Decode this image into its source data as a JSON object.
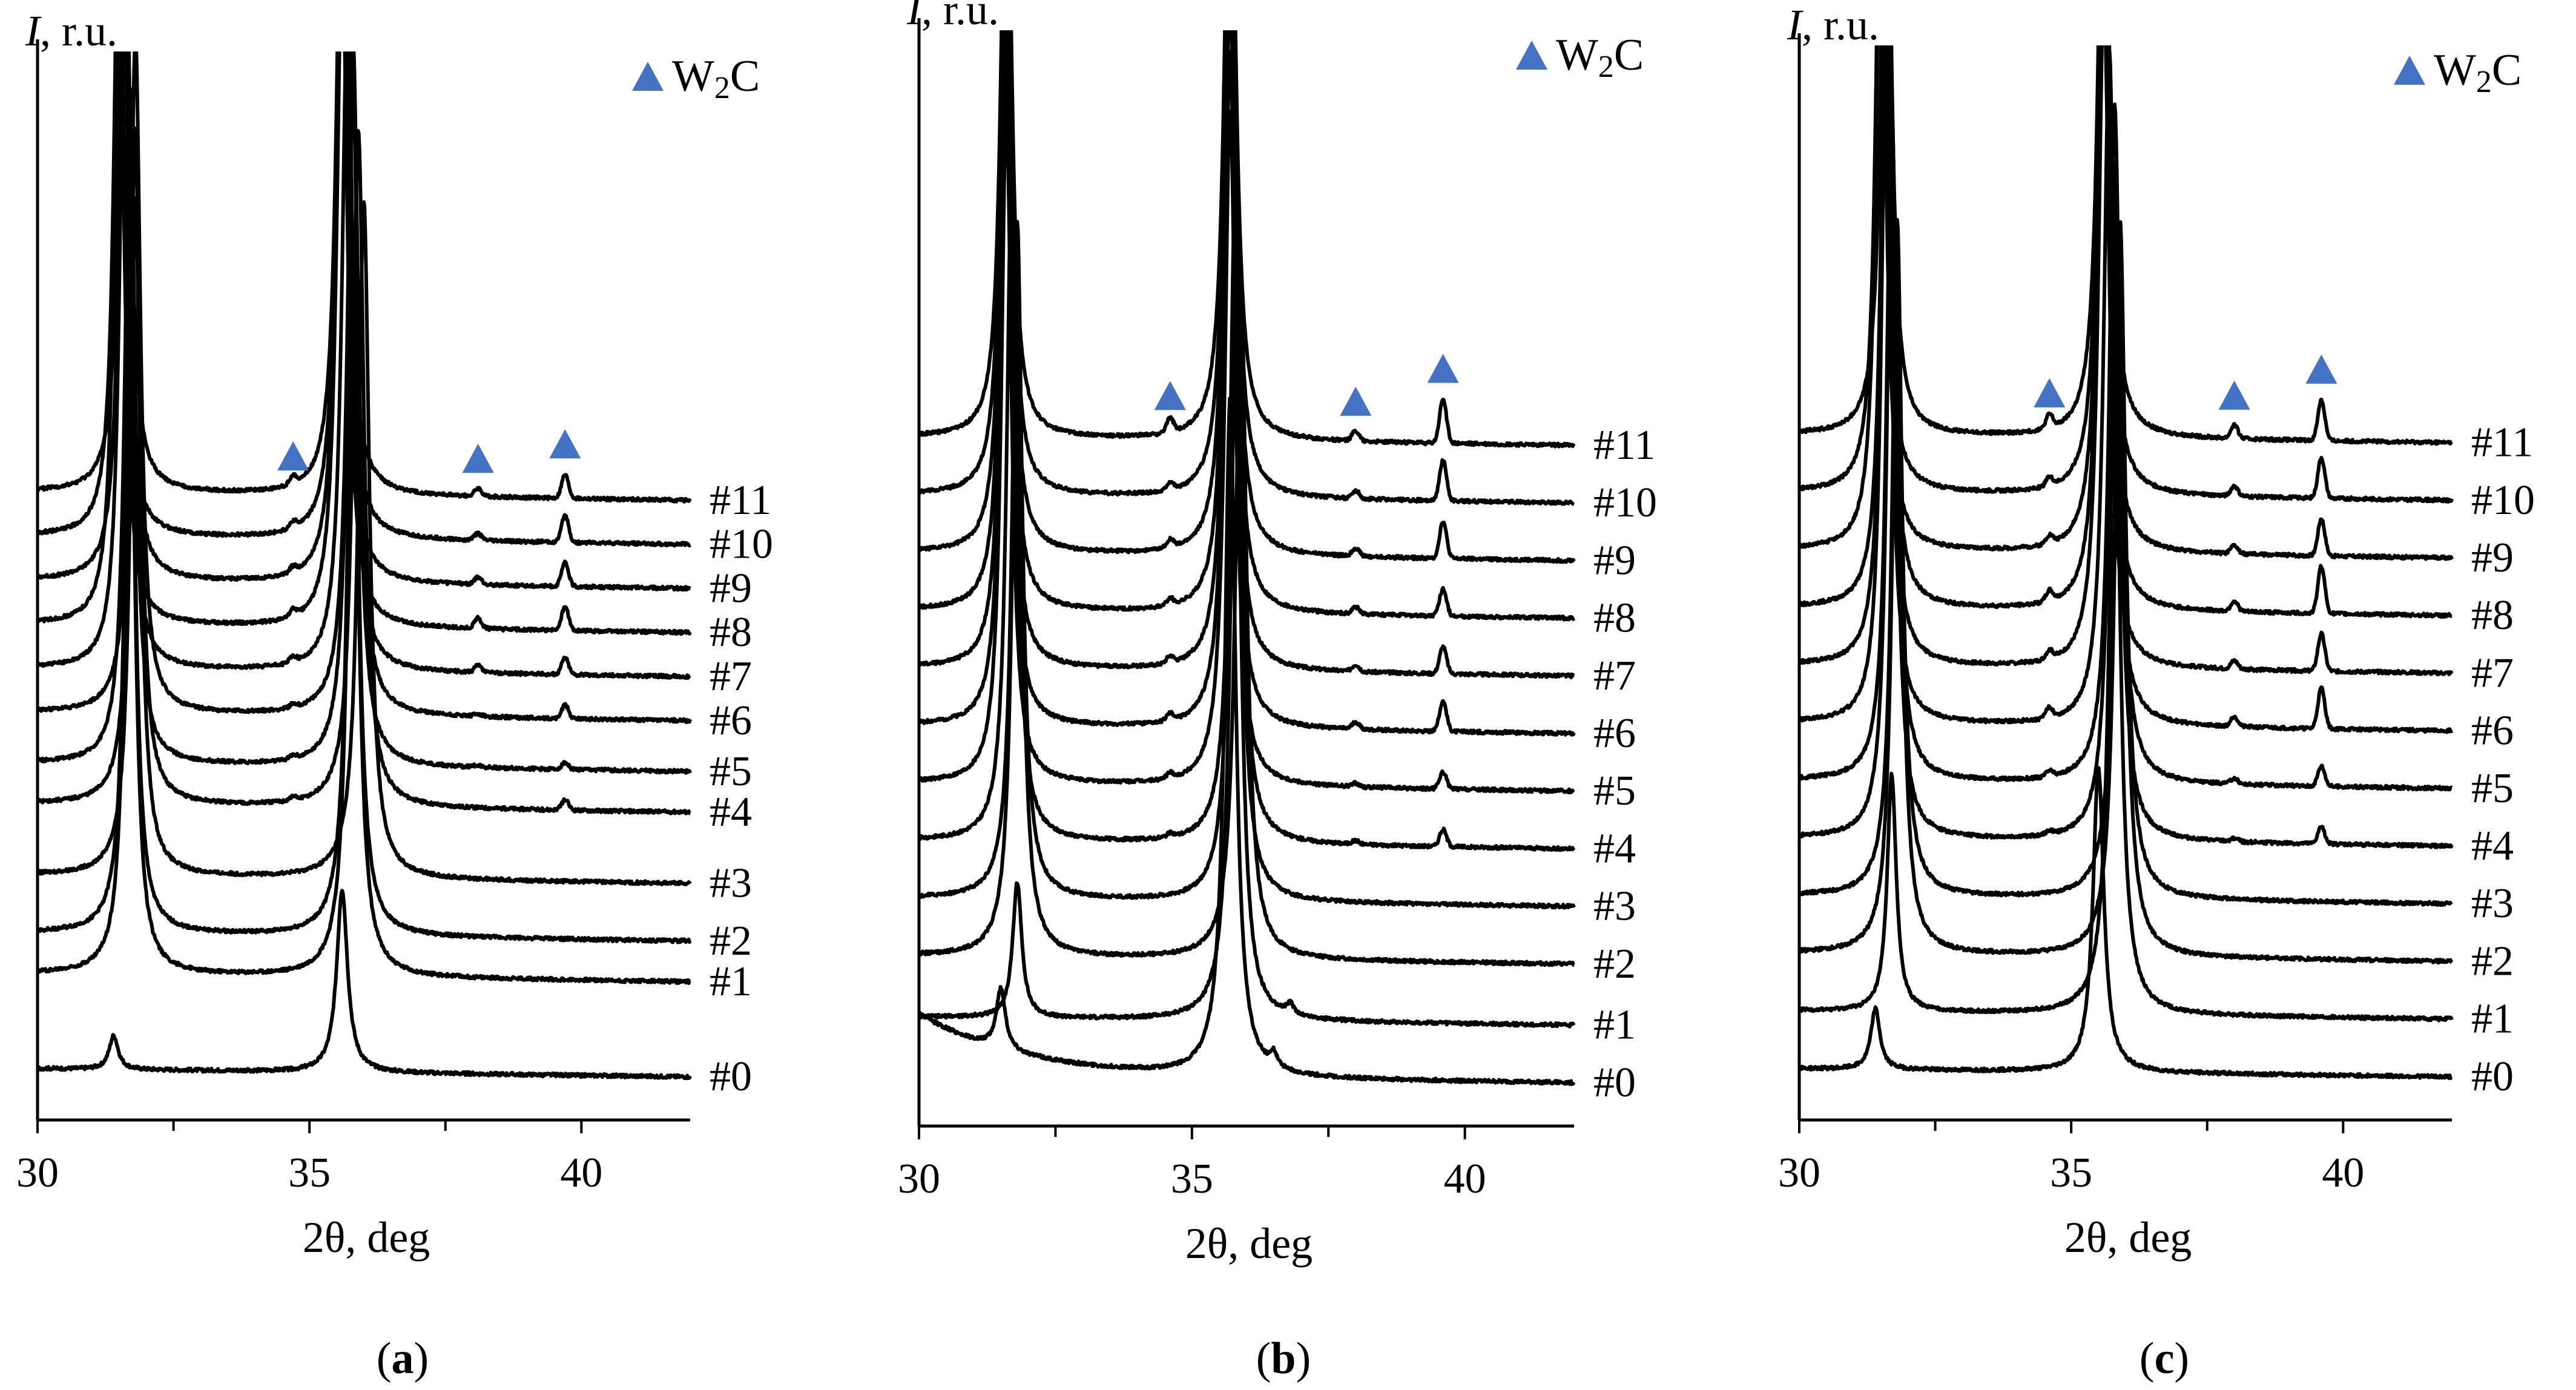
{
  "colors": {
    "marker": "#4472c4",
    "line": "#000000"
  },
  "legend": {
    "label_main": "W",
    "label_sub": "2",
    "label_tail": "C",
    "marker_icon": "triangle-icon"
  },
  "axes": {
    "xlabel": "2θ, deg",
    "ylabel_italic": "I",
    "ylabel_rest": ", r.u.",
    "xlim": [
      30,
      42
    ],
    "xticks": [
      30,
      35,
      40
    ],
    "xtick_labels": [
      "30",
      "35",
      "40"
    ],
    "minor_xticks": [
      32.5,
      37.5
    ]
  },
  "chart_data": [
    {
      "type": "line",
      "panel_letter": "a",
      "title": "(a)",
      "xlabel": "2θ, deg",
      "ylabel": "I, r.u.",
      "xlim": [
        30,
        42
      ],
      "markers_2theta": [
        34.7,
        38.1,
        39.7
      ],
      "series": [
        {
          "name": "#0",
          "baseline": 0.1,
          "peaks": [
            {
              "x": 31.4,
              "h": 0.5,
              "w": 0.1
            },
            {
              "x": 35.6,
              "h": 2.7,
              "w": 0.12
            }
          ],
          "w2c": [
            0,
            0,
            0
          ]
        },
        {
          "name": "#1",
          "baseline": 1.5,
          "peaks": [
            {
              "x": 31.7,
              "h": 10.0,
              "w": 0.11
            },
            {
              "x": 35.8,
              "h": 10.0,
              "w": 0.12
            }
          ],
          "w2c": [
            0,
            0,
            0
          ]
        },
        {
          "name": "#2",
          "baseline": 2.1,
          "peaks": [
            {
              "x": 31.7,
              "h": 10.0,
              "w": 0.11
            },
            {
              "x": 35.8,
              "h": 10.0,
              "w": 0.12
            }
          ],
          "w2c": [
            0,
            0,
            0
          ]
        },
        {
          "name": "#3",
          "baseline": 2.95,
          "peaks": [
            {
              "x": 31.8,
              "h": 10.0,
              "w": 0.11
            },
            {
              "x": 36.0,
              "h": 10.0,
              "w": 0.12
            }
          ],
          "w2c": [
            0,
            0,
            0
          ]
        },
        {
          "name": "#4",
          "baseline": 4.0,
          "peaks": [
            {
              "x": 31.8,
              "h": 10.0,
              "w": 0.11
            },
            {
              "x": 35.9,
              "h": 10.0,
              "w": 0.12
            }
          ],
          "w2c": [
            0.05,
            0.0,
            0.15
          ]
        },
        {
          "name": "#5",
          "baseline": 4.6,
          "peaks": [
            {
              "x": 31.7,
              "h": 10.0,
              "w": 0.11
            },
            {
              "x": 35.8,
              "h": 10.0,
              "w": 0.12
            }
          ],
          "w2c": [
            0.05,
            0.03,
            0.1
          ]
        },
        {
          "name": "#6",
          "baseline": 5.35,
          "peaks": [
            {
              "x": 31.8,
              "h": 10.0,
              "w": 0.11
            },
            {
              "x": 35.8,
              "h": 10.0,
              "w": 0.12
            }
          ],
          "w2c": [
            0.05,
            0.03,
            0.2
          ]
        },
        {
          "name": "#7",
          "baseline": 6.0,
          "peaks": [
            {
              "x": 31.6,
              "h": 10.0,
              "w": 0.11
            },
            {
              "x": 35.7,
              "h": 10.0,
              "w": 0.12
            }
          ],
          "w2c": [
            0.08,
            0.1,
            0.25
          ]
        },
        {
          "name": "#8",
          "baseline": 6.65,
          "peaks": [
            {
              "x": 31.5,
              "h": 10.0,
              "w": 0.11
            },
            {
              "x": 35.6,
              "h": 10.0,
              "w": 0.12
            }
          ],
          "w2c": [
            0.1,
            0.15,
            0.35
          ]
        },
        {
          "name": "#9",
          "baseline": 7.3,
          "peaks": [
            {
              "x": 31.6,
              "h": 10.0,
              "w": 0.11
            },
            {
              "x": 35.6,
              "h": 10.0,
              "w": 0.12
            }
          ],
          "w2c": [
            0.08,
            0.1,
            0.35
          ]
        },
        {
          "name": "#10",
          "baseline": 7.95,
          "peaks": [
            {
              "x": 31.5,
              "h": 10.0,
              "w": 0.11
            },
            {
              "x": 35.6,
              "h": 10.0,
              "w": 0.12
            }
          ],
          "w2c": [
            0.1,
            0.1,
            0.4
          ]
        },
        {
          "name": "#11",
          "baseline": 8.6,
          "peaks": [
            {
              "x": 31.6,
              "h": 10.0,
              "w": 0.11
            },
            {
              "x": 35.6,
              "h": 10.0,
              "w": 0.12
            }
          ],
          "w2c": [
            0.12,
            0.12,
            0.35
          ]
        }
      ]
    },
    {
      "type": "line",
      "panel_letter": "b",
      "title": "(b)",
      "xlabel": "2θ, deg",
      "ylabel": "I, r.u.",
      "xlim": [
        30,
        42
      ],
      "markers_2theta": [
        34.6,
        38.0,
        39.6
      ],
      "series": [
        {
          "name": "#0",
          "baseline": 0.1,
          "peaks": [
            {
              "x": 31.5,
              "h": 0.9,
              "w": 0.1
            },
            {
              "x": 35.7,
              "h": 10.0,
              "w": 0.12
            },
            {
              "x": 36.5,
              "h": 0.2,
              "w": 0.08
            }
          ],
          "w2c": [
            0,
            0,
            0
          ],
          "bg": 0.9
        },
        {
          "name": "#1",
          "baseline": 0.95,
          "peaks": [
            {
              "x": 31.8,
              "h": 2.0,
              "w": 0.1
            },
            {
              "x": 35.8,
              "h": 10.0,
              "w": 0.12
            },
            {
              "x": 36.8,
              "h": 0.15,
              "w": 0.08
            }
          ],
          "w2c": [
            0,
            0,
            0
          ]
        },
        {
          "name": "#2",
          "baseline": 1.85,
          "peaks": [
            {
              "x": 31.8,
              "h": 10.0,
              "w": 0.11
            },
            {
              "x": 35.9,
              "h": 10.0,
              "w": 0.12
            }
          ],
          "w2c": [
            0,
            0,
            0
          ]
        },
        {
          "name": "#3",
          "baseline": 2.7,
          "peaks": [
            {
              "x": 31.8,
              "h": 10.0,
              "w": 0.11
            },
            {
              "x": 35.8,
              "h": 10.0,
              "w": 0.12
            }
          ],
          "w2c": [
            0,
            0,
            0
          ]
        },
        {
          "name": "#4",
          "baseline": 3.55,
          "peaks": [
            {
              "x": 31.7,
              "h": 10.0,
              "w": 0.11
            },
            {
              "x": 35.8,
              "h": 10.0,
              "w": 0.12
            }
          ],
          "w2c": [
            0.05,
            0.05,
            0.25
          ]
        },
        {
          "name": "#5",
          "baseline": 4.4,
          "peaks": [
            {
              "x": 31.6,
              "h": 10.0,
              "w": 0.11
            },
            {
              "x": 35.7,
              "h": 10.0,
              "w": 0.12
            }
          ],
          "w2c": [
            0.08,
            0.05,
            0.25
          ]
        },
        {
          "name": "#6",
          "baseline": 5.25,
          "peaks": [
            {
              "x": 31.6,
              "h": 10.0,
              "w": 0.11
            },
            {
              "x": 35.7,
              "h": 10.0,
              "w": 0.12
            }
          ],
          "w2c": [
            0.1,
            0.1,
            0.45
          ]
        },
        {
          "name": "#7",
          "baseline": 6.1,
          "peaks": [
            {
              "x": 31.6,
              "h": 10.0,
              "w": 0.11
            },
            {
              "x": 35.7,
              "h": 10.0,
              "w": 0.12
            }
          ],
          "w2c": [
            0.1,
            0.1,
            0.4
          ]
        },
        {
          "name": "#8",
          "baseline": 6.95,
          "peaks": [
            {
              "x": 31.6,
              "h": 10.0,
              "w": 0.11
            },
            {
              "x": 35.7,
              "h": 10.0,
              "w": 0.12
            }
          ],
          "w2c": [
            0.1,
            0.1,
            0.4
          ]
        },
        {
          "name": "#9",
          "baseline": 7.8,
          "peaks": [
            {
              "x": 31.6,
              "h": 10.0,
              "w": 0.11
            },
            {
              "x": 35.7,
              "h": 10.0,
              "w": 0.12
            }
          ],
          "w2c": [
            0.12,
            0.12,
            0.55
          ]
        },
        {
          "name": "#10",
          "baseline": 8.65,
          "peaks": [
            {
              "x": 31.6,
              "h": 10.0,
              "w": 0.11
            },
            {
              "x": 35.7,
              "h": 10.0,
              "w": 0.12
            }
          ],
          "w2c": [
            0.12,
            0.12,
            0.6
          ]
        },
        {
          "name": "#11",
          "baseline": 9.5,
          "peaks": [
            {
              "x": 31.6,
              "h": 10.0,
              "w": 0.11
            },
            {
              "x": 35.7,
              "h": 10.0,
              "w": 0.12
            }
          ],
          "w2c": [
            0.2,
            0.15,
            0.65
          ]
        }
      ]
    },
    {
      "type": "line",
      "panel_letter": "c",
      "title": "(c)",
      "xlabel": "2θ, deg",
      "ylabel": "I, r.u.",
      "xlim": [
        30,
        42
      ],
      "markers_2theta": [
        34.6,
        38.0,
        39.6
      ],
      "series": [
        {
          "name": "#0",
          "baseline": 0.1,
          "peaks": [
            {
              "x": 31.4,
              "h": 0.9,
              "w": 0.1
            },
            {
              "x": 35.5,
              "h": 4.5,
              "w": 0.12
            }
          ],
          "w2c": [
            0,
            0,
            0
          ]
        },
        {
          "name": "#1",
          "baseline": 0.95,
          "peaks": [
            {
              "x": 31.7,
              "h": 3.5,
              "w": 0.1
            },
            {
              "x": 35.8,
              "h": 10.0,
              "w": 0.12
            }
          ],
          "w2c": [
            0,
            0,
            0
          ]
        },
        {
          "name": "#2",
          "baseline": 1.8,
          "peaks": [
            {
              "x": 31.8,
              "h": 10.0,
              "w": 0.11
            },
            {
              "x": 35.9,
              "h": 10.0,
              "w": 0.12
            }
          ],
          "w2c": [
            0,
            0,
            0
          ]
        },
        {
          "name": "#3",
          "baseline": 2.65,
          "peaks": [
            {
              "x": 31.8,
              "h": 10.0,
              "w": 0.11
            },
            {
              "x": 35.9,
              "h": 10.0,
              "w": 0.12
            }
          ],
          "w2c": [
            0,
            0,
            0
          ]
        },
        {
          "name": "#4",
          "baseline": 3.5,
          "peaks": [
            {
              "x": 31.7,
              "h": 10.0,
              "w": 0.11
            },
            {
              "x": 35.8,
              "h": 10.0,
              "w": 0.12
            }
          ],
          "w2c": [
            0.05,
            0.05,
            0.25
          ]
        },
        {
          "name": "#5",
          "baseline": 4.35,
          "peaks": [
            {
              "x": 31.7,
              "h": 10.0,
              "w": 0.11
            },
            {
              "x": 35.8,
              "h": 10.0,
              "w": 0.12
            }
          ],
          "w2c": [
            0.08,
            0.08,
            0.3
          ]
        },
        {
          "name": "#6",
          "baseline": 5.2,
          "peaks": [
            {
              "x": 31.6,
              "h": 10.0,
              "w": 0.11
            },
            {
              "x": 35.7,
              "h": 10.0,
              "w": 0.12
            }
          ],
          "w2c": [
            0.15,
            0.15,
            0.6
          ]
        },
        {
          "name": "#7",
          "baseline": 6.05,
          "peaks": [
            {
              "x": 31.6,
              "h": 10.0,
              "w": 0.11
            },
            {
              "x": 35.6,
              "h": 10.0,
              "w": 0.12
            }
          ],
          "w2c": [
            0.12,
            0.12,
            0.55
          ]
        },
        {
          "name": "#8",
          "baseline": 6.9,
          "peaks": [
            {
              "x": 31.6,
              "h": 10.0,
              "w": 0.11
            },
            {
              "x": 35.6,
              "h": 10.0,
              "w": 0.12
            }
          ],
          "w2c": [
            0.15,
            0.15,
            0.7
          ]
        },
        {
          "name": "#9",
          "baseline": 7.75,
          "peaks": [
            {
              "x": 31.5,
              "h": 10.0,
              "w": 0.11
            },
            {
              "x": 35.6,
              "h": 10.0,
              "w": 0.12
            }
          ],
          "w2c": [
            0.12,
            0.12,
            0.55
          ]
        },
        {
          "name": "#10",
          "baseline": 8.6,
          "peaks": [
            {
              "x": 31.5,
              "h": 10.0,
              "w": 0.11
            },
            {
              "x": 35.6,
              "h": 10.0,
              "w": 0.12
            }
          ],
          "w2c": [
            0.12,
            0.15,
            0.6
          ]
        },
        {
          "name": "#11",
          "baseline": 9.45,
          "peaks": [
            {
              "x": 31.6,
              "h": 10.0,
              "w": 0.11
            },
            {
              "x": 35.6,
              "h": 10.0,
              "w": 0.12
            }
          ],
          "w2c": [
            0.2,
            0.2,
            0.6
          ]
        }
      ]
    }
  ]
}
